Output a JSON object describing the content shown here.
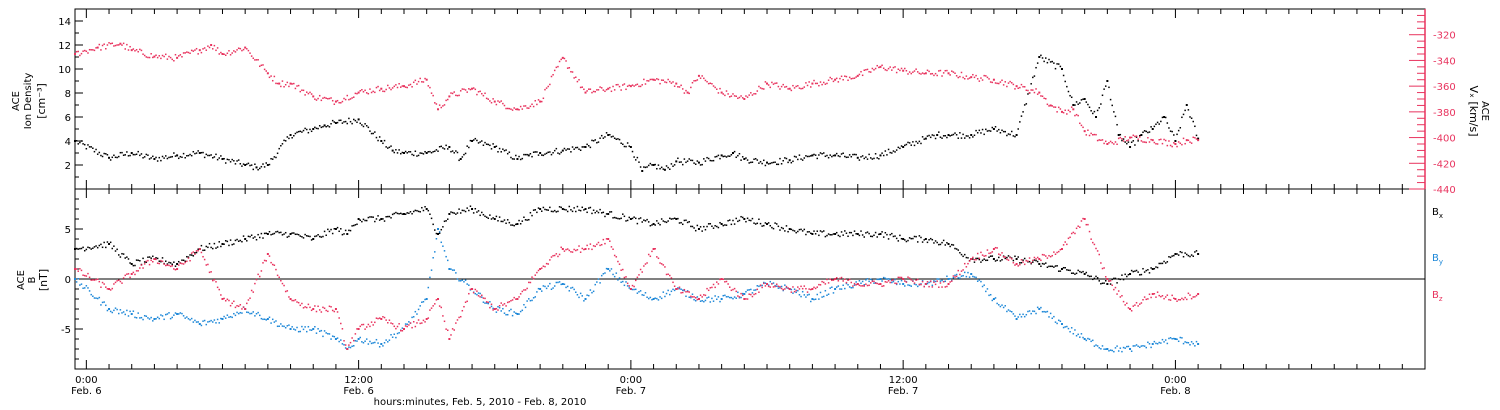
{
  "chart_data": [
    {
      "type": "scatter",
      "panel": "top",
      "left_axis": {
        "label_lines": [
          "ACE",
          "Ion Density",
          "[cm⁻³]"
        ],
        "ylim": [
          0,
          15
        ],
        "ticks": [
          2,
          4,
          6,
          8,
          10,
          12,
          14
        ],
        "tick_labels": [
          "2",
          "4",
          "6",
          "8",
          "10",
          "12",
          "14"
        ]
      },
      "right_axis": {
        "label_lines": [
          "ACE",
          "Vₓ [km/s]"
        ],
        "ylim": [
          -440,
          -300
        ],
        "ticks": [
          -440,
          -420,
          -400,
          -380,
          -360,
          -340,
          -320
        ],
        "tick_labels": [
          "-440",
          "-420",
          "-400",
          "-380",
          "-360",
          "-340",
          "-320"
        ],
        "color": "#e8335e"
      },
      "series": [
        {
          "axis": "left",
          "color": "#000000",
          "x": [
            -0.5,
            1,
            2,
            3,
            4,
            5,
            6,
            7,
            7.5,
            8,
            9,
            10,
            10.5,
            11,
            12,
            13,
            13.5,
            14,
            15,
            16,
            16.5,
            17,
            18,
            19,
            19.5,
            20,
            21,
            22,
            23,
            24,
            24.5,
            25,
            25.5,
            26,
            27,
            28,
            28.5,
            29,
            30,
            31,
            32,
            33,
            34,
            35,
            36,
            37,
            37.5,
            38,
            39,
            40,
            41,
            42,
            43,
            43.5,
            44,
            44.5,
            45,
            45.5,
            46,
            46.5,
            47,
            47.5,
            48,
            48.5,
            49
          ],
          "y": [
            4,
            2.6,
            3,
            2.5,
            2.8,
            3,
            2.5,
            2,
            1.8,
            2,
            4.5,
            5,
            5.3,
            5.5,
            5.8,
            4,
            3.2,
            3,
            3,
            3.5,
            2.5,
            4,
            3.5,
            2.5,
            2.8,
            3,
            3.2,
            3.5,
            4.5,
            3.5,
            1.5,
            2,
            1.6,
            2.3,
            2.2,
            2.8,
            3,
            2.5,
            2.2,
            2.4,
            2.8,
            2.8,
            2.6,
            2.8,
            3.5,
            4.2,
            4.5,
            4.5,
            4.5,
            5,
            4.5,
            11,
            10,
            7,
            7.5,
            6,
            9,
            4.5,
            3.5,
            4.5,
            5,
            6,
            4,
            7,
            4.2
          ]
        },
        {
          "axis": "right",
          "color": "#e8335e",
          "x": [
            -0.5,
            0.5,
            1.5,
            2,
            3,
            4,
            5,
            5.5,
            6,
            7,
            8,
            8.5,
            9,
            10,
            11,
            12,
            13,
            14,
            15,
            15.5,
            16,
            17,
            18,
            19,
            20,
            21,
            22,
            23,
            24,
            25,
            26,
            26.5,
            27,
            28,
            29,
            30,
            31,
            32,
            33,
            34,
            35,
            36,
            37,
            38,
            39,
            40,
            41,
            42,
            42.5,
            43,
            43.5,
            44,
            45,
            46,
            47,
            48,
            48.5,
            49
          ],
          "y": [
            -335,
            -330,
            -327,
            -332,
            -337,
            -338,
            -332,
            -328,
            -335,
            -330,
            -350,
            -358,
            -358,
            -368,
            -372,
            -365,
            -362,
            -360,
            -355,
            -378,
            -368,
            -362,
            -372,
            -378,
            -372,
            -338,
            -365,
            -362,
            -360,
            -355,
            -358,
            -365,
            -352,
            -365,
            -370,
            -358,
            -362,
            -358,
            -355,
            -352,
            -345,
            -348,
            -350,
            -350,
            -353,
            -355,
            -360,
            -365,
            -375,
            -380,
            -378,
            -395,
            -405,
            -400,
            -402,
            -405,
            -402,
            -402
          ]
        }
      ]
    },
    {
      "type": "scatter",
      "panel": "bottom",
      "left_axis": {
        "label_lines": [
          "ACE",
          "B",
          "[nT]"
        ],
        "ylim": [
          -9,
          9
        ],
        "ticks": [
          -5,
          0,
          5
        ],
        "tick_labels": [
          "-5",
          "0",
          "5"
        ],
        "zero_line": true
      },
      "legend": {
        "position": "right",
        "entries": [
          {
            "main": "B",
            "sub": "x",
            "color": "#000000"
          },
          {
            "main": "B",
            "sub": "y",
            "color": "#1e88d8"
          },
          {
            "main": "B",
            "sub": "z",
            "color": "#e8335e"
          }
        ]
      },
      "series": [
        {
          "name": "Bx",
          "color": "#000000",
          "x": [
            -0.5,
            1,
            2,
            3,
            4,
            5,
            6,
            7,
            8,
            9,
            10,
            11,
            11.5,
            12,
            13,
            14,
            15,
            15.5,
            16,
            17,
            18,
            19,
            20,
            21,
            22,
            23,
            24,
            25,
            26,
            27,
            28,
            29,
            30,
            31,
            32,
            33,
            34,
            35,
            36,
            37,
            38,
            39,
            40,
            41,
            42,
            43,
            44,
            45,
            46,
            47,
            48,
            49
          ],
          "y": [
            3,
            3.5,
            1.5,
            2,
            1.5,
            3,
            3.5,
            4,
            4.5,
            4.5,
            4,
            5,
            4.5,
            6,
            6,
            6.5,
            7,
            4.5,
            6.5,
            7,
            6,
            5.5,
            7,
            7,
            7,
            6.5,
            6,
            5.5,
            6,
            5,
            5.5,
            6,
            5.5,
            5,
            4.5,
            4.5,
            4.5,
            4.5,
            4,
            4,
            3.5,
            2,
            2,
            2,
            1.5,
            1,
            0.5,
            -0.5,
            0.5,
            1,
            2.5,
            2.5
          ]
        },
        {
          "name": "By",
          "color": "#1e88d8",
          "x": [
            -0.5,
            1,
            2,
            3,
            4,
            5,
            6,
            7,
            8,
            9,
            10,
            11,
            11.5,
            12,
            13,
            14,
            15,
            15.5,
            16,
            17,
            18,
            19,
            20,
            21,
            22,
            23,
            24,
            25,
            26,
            27,
            28,
            29,
            30,
            31,
            32,
            33,
            34,
            35,
            36,
            37,
            38,
            39,
            40,
            41,
            42,
            43,
            44,
            45,
            46,
            47,
            48,
            49
          ],
          "y": [
            0,
            -3,
            -3.5,
            -4,
            -3.5,
            -4.5,
            -4,
            -3,
            -4,
            -5,
            -5,
            -6,
            -7,
            -6,
            -6.5,
            -5,
            -2,
            5,
            1,
            -1,
            -3,
            -3.5,
            -1,
            -0.5,
            -2,
            1,
            -1,
            -2,
            -1,
            -2,
            -2,
            -1.5,
            -0.5,
            -1,
            -2,
            -1,
            -0.5,
            0,
            -0.5,
            -0.5,
            0,
            0.5,
            -2,
            -4,
            -3,
            -4.5,
            -6,
            -7,
            -7,
            -6.5,
            -6,
            -6.5
          ]
        },
        {
          "name": "Bz",
          "color": "#e8335e",
          "x": [
            -0.5,
            1,
            2,
            3,
            4,
            5,
            6,
            7,
            8,
            9,
            10,
            11,
            11.5,
            12,
            13,
            14,
            15,
            15.5,
            16,
            17,
            18,
            19,
            20,
            21,
            22,
            23,
            24,
            25,
            26,
            27,
            28,
            29,
            30,
            31,
            32,
            33,
            34,
            35,
            36,
            37,
            38,
            39,
            40,
            41,
            42,
            43,
            44,
            45,
            46,
            47,
            48,
            49
          ],
          "y": [
            1,
            -1,
            0.5,
            2,
            1,
            3,
            -2,
            -3,
            2.5,
            -2,
            -3,
            -3,
            -7,
            -5,
            -4,
            -5,
            -4,
            -2,
            -6,
            -1,
            -3,
            -2,
            1,
            3,
            3,
            4,
            -1,
            3,
            -1,
            -2,
            0,
            -2,
            -0.5,
            -1,
            -1,
            0,
            -0.5,
            -0.5,
            0,
            -0.5,
            -0.5,
            2,
            3,
            1.5,
            2,
            3,
            6,
            0,
            -3,
            -1.5,
            -2,
            -1.5
          ]
        }
      ]
    }
  ],
  "x_axis": {
    "major_ticks": [
      0,
      12,
      24,
      36,
      48
    ],
    "minor_step": 1,
    "range_hours": [
      -0.5,
      59
    ],
    "labels": [
      {
        "time": "0:00",
        "date": "Feb. 6"
      },
      {
        "time": "12:00",
        "date": "Feb. 6"
      },
      {
        "time": "0:00",
        "date": "Feb. 7"
      },
      {
        "time": "12:00",
        "date": "Feb. 7"
      },
      {
        "time": "0:00",
        "date": "Feb. 8"
      }
    ],
    "title": "hours:minutes, Feb.  5, 2010 - Feb.  8, 2010"
  }
}
